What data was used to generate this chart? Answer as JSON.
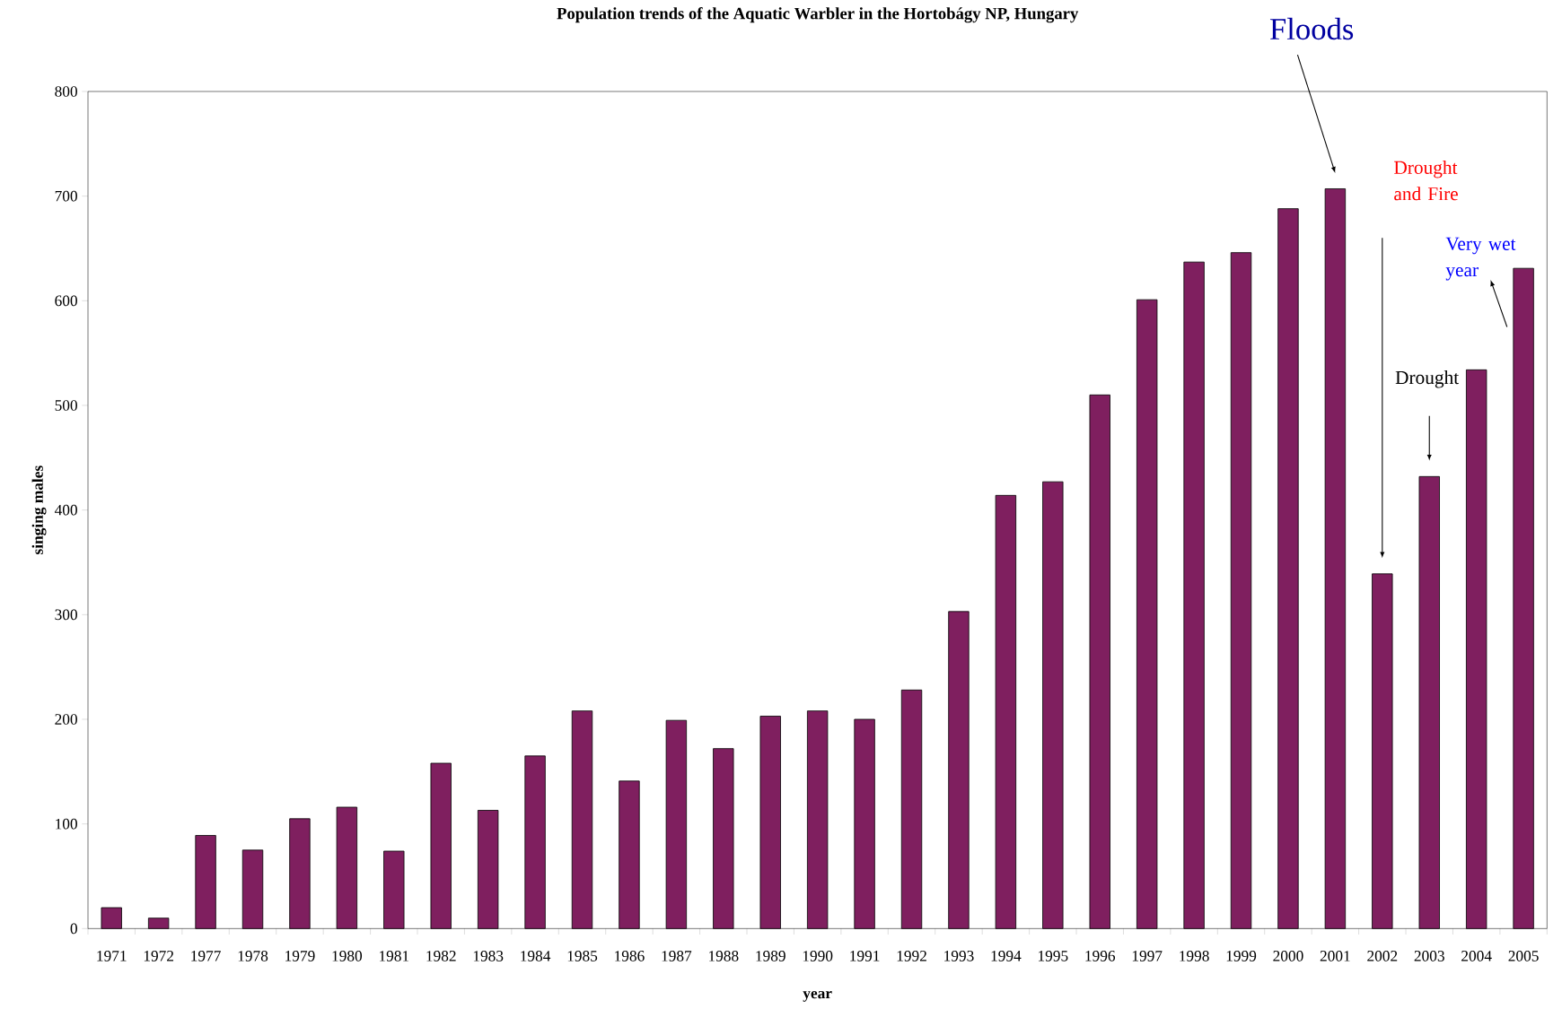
{
  "chart_data": {
    "type": "bar",
    "title": "Population trends of the Aquatic Warbler in the Hortobágy NP, Hungary",
    "xlabel": "year",
    "ylabel": "singing males",
    "categories": [
      "1971",
      "1972",
      "1977",
      "1978",
      "1979",
      "1980",
      "1981",
      "1982",
      "1983",
      "1984",
      "1985",
      "1986",
      "1987",
      "1988",
      "1989",
      "1990",
      "1991",
      "1992",
      "1993",
      "1994",
      "1995",
      "1996",
      "1997",
      "1998",
      "1999",
      "2000",
      "2001",
      "2002",
      "2003",
      "2004",
      "2005"
    ],
    "values": [
      20,
      10,
      89,
      75,
      105,
      116,
      74,
      158,
      113,
      165,
      208,
      141,
      199,
      172,
      203,
      208,
      200,
      228,
      303,
      414,
      427,
      510,
      601,
      637,
      646,
      688,
      707,
      339,
      432,
      534,
      631
    ],
    "color": "#7f1f5f",
    "ylim": [
      0,
      800
    ],
    "yticks": [
      0,
      100,
      200,
      300,
      400,
      500,
      600,
      700,
      800
    ],
    "grid": false,
    "annotations": [
      "Floods",
      "Drought and Fire",
      "Drought",
      "Very wet year"
    ]
  }
}
